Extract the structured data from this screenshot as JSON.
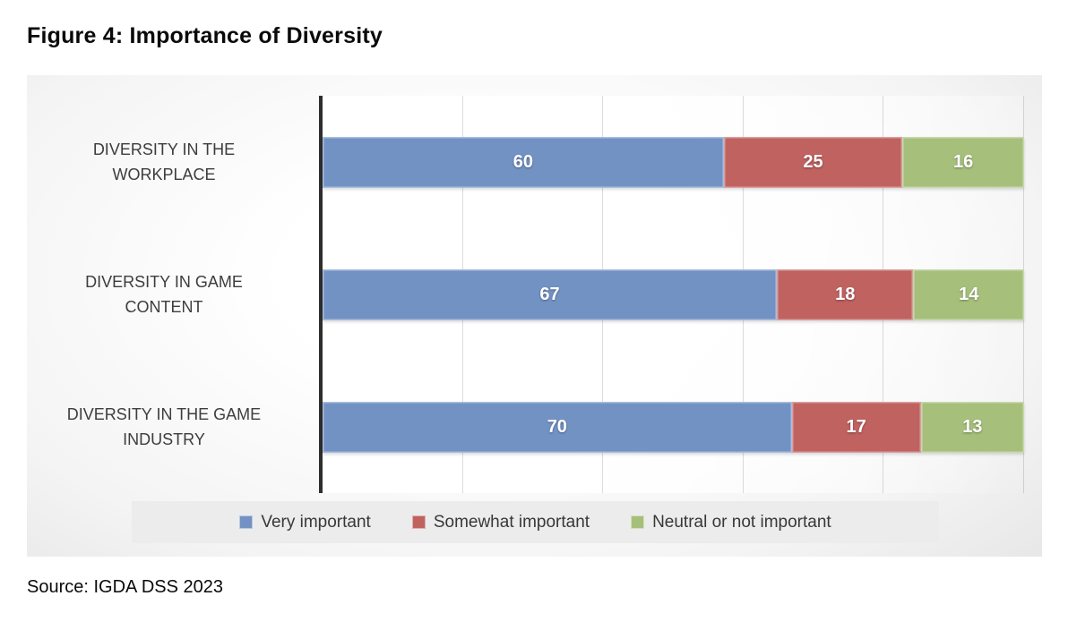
{
  "page": {
    "title": "Figure 4: Importance of Diversity",
    "source_note": "Source: IGDA DSS 2023"
  },
  "chart_data": {
    "type": "bar",
    "orientation": "horizontal",
    "stacked": true,
    "percent_of_total": true,
    "title": "Figure 4: Importance of Diversity",
    "xlabel": "",
    "ylabel": "",
    "xlim": [
      0,
      100
    ],
    "gridline_interval": 20,
    "grid": true,
    "legend_position": "bottom",
    "categories": [
      "DIVERSITY IN THE WORKPLACE",
      "DIVERSITY IN GAME CONTENT",
      "DIVERSITY IN THE GAME INDUSTRY"
    ],
    "category_label_linebreaks": [
      "DIVERSITY IN THE\nWORKPLACE",
      "DIVERSITY IN GAME\nCONTENT",
      "DIVERSITY IN THE GAME\nINDUSTRY"
    ],
    "series": [
      {
        "name": "Very important",
        "color": "#7292c4",
        "values": [
          60,
          67,
          70
        ]
      },
      {
        "name": "Somewhat important",
        "color": "#bf6260",
        "values": [
          25,
          18,
          17
        ]
      },
      {
        "name": "Neutral or not important",
        "color": "#a6bf7b",
        "values": [
          16,
          14,
          13
        ]
      }
    ],
    "data_label_style": "white bold numbers centered inside segments"
  },
  "colors": {
    "axis": "#2e2e2e",
    "gridline": "#d6d6d6",
    "legend_background": "#ececec",
    "category_text": "#3d3d3d",
    "chart_background": "gray-to-white radial gradient"
  }
}
